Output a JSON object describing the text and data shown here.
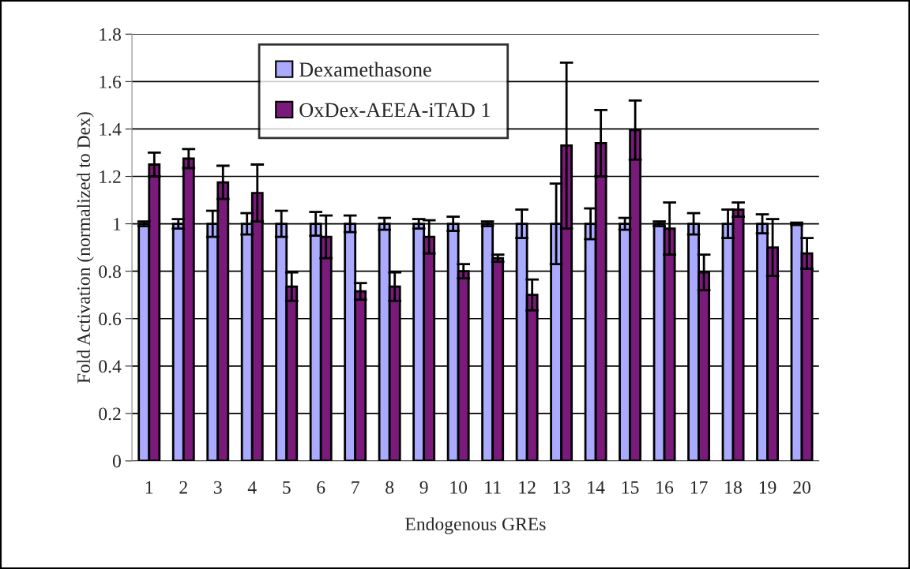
{
  "chart_data": {
    "type": "bar",
    "xlabel": "Endogenous GREs",
    "ylabel": "Fold Activation (normalized to Dex)",
    "categories": [
      "1",
      "2",
      "3",
      "4",
      "5",
      "6",
      "7",
      "8",
      "9",
      "10",
      "11",
      "12",
      "13",
      "14",
      "15",
      "16",
      "17",
      "18",
      "19",
      "20"
    ],
    "series": [
      {
        "name": "Dexamethasone",
        "color": "#aaaaff",
        "values": [
          1,
          1,
          1,
          1,
          1,
          1,
          1,
          1,
          1,
          1,
          1,
          1,
          1,
          1,
          1,
          1,
          1,
          1,
          1,
          1
        ],
        "errors": [
          0.01,
          0.02,
          0.055,
          0.045,
          0.055,
          0.05,
          0.035,
          0.025,
          0.02,
          0.03,
          0.01,
          0.06,
          0.17,
          0.065,
          0.025,
          0.01,
          0.045,
          0.06,
          0.04,
          0.005
        ]
      },
      {
        "name": "OxDex-AEEA-iTAD 1",
        "color": "#7a1a7a",
        "values": [
          1.25,
          1.275,
          1.175,
          1.13,
          0.735,
          0.945,
          0.715,
          0.735,
          0.945,
          0.8,
          0.855,
          0.7,
          1.33,
          1.34,
          1.395,
          0.98,
          0.795,
          1.06,
          0.9,
          0.875
        ],
        "errors": [
          0.05,
          0.04,
          0.07,
          0.12,
          0.06,
          0.09,
          0.035,
          0.06,
          0.07,
          0.03,
          0.015,
          0.065,
          0.35,
          0.14,
          0.125,
          0.11,
          0.075,
          0.03,
          0.12,
          0.065
        ]
      }
    ],
    "ylim": [
      0,
      1.8
    ],
    "yticks": [
      0,
      0.2,
      0.4,
      0.6,
      0.8,
      1,
      1.2,
      1.4,
      1.6,
      1.8
    ],
    "grid": "y",
    "legend": "top left"
  }
}
